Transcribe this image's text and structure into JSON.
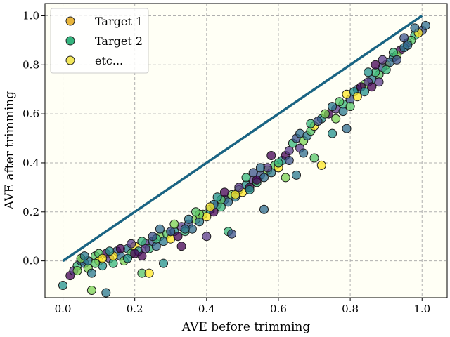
{
  "chart_data": {
    "type": "scatter",
    "xlabel": "AVE before trimming",
    "ylabel": "AVE after trimming",
    "xlim": [
      -0.05,
      1.07
    ],
    "ylim": [
      -0.15,
      1.05
    ],
    "xticks": [
      "0.0",
      "0.2",
      "0.4",
      "0.6",
      "0.8",
      "1.0"
    ],
    "yticks": [
      "0.0",
      "0.2",
      "0.4",
      "0.6",
      "0.8",
      "1.0"
    ],
    "grid": true,
    "plot_background": "#fffff5",
    "legend_position": "top-left",
    "reference_line": {
      "x": [
        0,
        1
      ],
      "y": [
        0,
        1
      ],
      "color": "#1a6483"
    },
    "legend": [
      {
        "label": "Target 1",
        "color": "#e8b53c"
      },
      {
        "label": "Target 2",
        "color": "#35b47e"
      },
      {
        "label": "etc...",
        "color": "#f1e65a"
      }
    ],
    "series_colors": [
      "#440154",
      "#3b528b",
      "#2a788e",
      "#21918c",
      "#35b779",
      "#7ad151",
      "#fde725",
      "#5c3c8c",
      "#2f6c8e",
      "#55c567"
    ],
    "points": [
      [
        0.0,
        -0.1
      ],
      [
        0.02,
        -0.06
      ],
      [
        0.03,
        -0.04
      ],
      [
        0.04,
        -0.02
      ],
      [
        0.05,
        0.0
      ],
      [
        0.06,
        -0.01
      ],
      [
        0.07,
        -0.03
      ],
      [
        0.08,
        -0.05
      ],
      [
        0.09,
        0.02
      ],
      [
        0.1,
        0.0
      ],
      [
        0.11,
        -0.02
      ],
      [
        0.12,
        0.03
      ],
      [
        0.13,
        0.01
      ],
      [
        0.14,
        -0.01
      ],
      [
        0.15,
        0.04
      ],
      [
        0.16,
        0.02
      ],
      [
        0.17,
        0.0
      ],
      [
        0.18,
        0.05
      ],
      [
        0.19,
        0.03
      ],
      [
        0.2,
        0.06
      ],
      [
        0.21,
        0.04
      ],
      [
        0.22,
        0.02
      ],
      [
        0.23,
        0.07
      ],
      [
        0.24,
        0.05
      ],
      [
        0.25,
        0.08
      ],
      [
        0.26,
        0.06
      ],
      [
        0.27,
        0.1
      ],
      [
        0.28,
        0.08
      ],
      [
        0.29,
        0.11
      ],
      [
        0.3,
        0.09
      ],
      [
        0.31,
        0.12
      ],
      [
        0.32,
        0.1
      ],
      [
        0.33,
        0.14
      ],
      [
        0.34,
        0.12
      ],
      [
        0.35,
        0.15
      ],
      [
        0.36,
        0.13
      ],
      [
        0.37,
        0.17
      ],
      [
        0.38,
        0.16
      ],
      [
        0.39,
        0.19
      ],
      [
        0.4,
        0.18
      ],
      [
        0.41,
        0.21
      ],
      [
        0.42,
        0.2
      ],
      [
        0.43,
        0.23
      ],
      [
        0.44,
        0.22
      ],
      [
        0.45,
        0.25
      ],
      [
        0.46,
        0.24
      ],
      [
        0.47,
        0.27
      ],
      [
        0.48,
        0.26
      ],
      [
        0.49,
        0.29
      ],
      [
        0.5,
        0.28
      ],
      [
        0.51,
        0.31
      ],
      [
        0.52,
        0.3
      ],
      [
        0.53,
        0.33
      ],
      [
        0.54,
        0.32
      ],
      [
        0.55,
        0.35
      ],
      [
        0.56,
        0.34
      ],
      [
        0.57,
        0.37
      ],
      [
        0.58,
        0.36
      ],
      [
        0.59,
        0.39
      ],
      [
        0.6,
        0.38
      ],
      [
        0.61,
        0.41
      ],
      [
        0.62,
        0.43
      ],
      [
        0.63,
        0.45
      ],
      [
        0.64,
        0.48
      ],
      [
        0.65,
        0.5
      ],
      [
        0.66,
        0.52
      ],
      [
        0.67,
        0.49
      ],
      [
        0.68,
        0.51
      ],
      [
        0.69,
        0.53
      ],
      [
        0.7,
        0.55
      ],
      [
        0.72,
        0.58
      ],
      [
        0.74,
        0.6
      ],
      [
        0.76,
        0.62
      ],
      [
        0.78,
        0.64
      ],
      [
        0.8,
        0.66
      ],
      [
        0.82,
        0.7
      ],
      [
        0.84,
        0.72
      ],
      [
        0.86,
        0.74
      ],
      [
        0.88,
        0.76
      ],
      [
        0.9,
        0.8
      ],
      [
        0.92,
        0.83
      ],
      [
        0.94,
        0.86
      ],
      [
        0.96,
        0.89
      ],
      [
        0.98,
        0.92
      ],
      [
        1.0,
        0.94
      ],
      [
        1.01,
        0.96
      ],
      [
        0.08,
        -0.12
      ],
      [
        0.12,
        -0.13
      ],
      [
        0.22,
        -0.05
      ],
      [
        0.24,
        -0.05
      ],
      [
        0.28,
        -0.01
      ],
      [
        0.33,
        0.06
      ],
      [
        0.4,
        0.1
      ],
      [
        0.46,
        0.12
      ],
      [
        0.47,
        0.11
      ],
      [
        0.56,
        0.21
      ],
      [
        0.62,
        0.34
      ],
      [
        0.65,
        0.35
      ],
      [
        0.7,
        0.42
      ],
      [
        0.72,
        0.39
      ],
      [
        0.75,
        0.52
      ],
      [
        0.58,
        0.43
      ],
      [
        0.66,
        0.46
      ],
      [
        0.69,
        0.56
      ],
      [
        0.71,
        0.57
      ],
      [
        0.79,
        0.54
      ],
      [
        0.05,
        0.01
      ],
      [
        0.07,
        0.0
      ],
      [
        0.1,
        0.03
      ],
      [
        0.14,
        0.02
      ],
      [
        0.18,
        0.01
      ],
      [
        0.2,
        0.03
      ],
      [
        0.23,
        0.05
      ],
      [
        0.26,
        0.09
      ],
      [
        0.3,
        0.12
      ],
      [
        0.34,
        0.13
      ],
      [
        0.38,
        0.19
      ],
      [
        0.42,
        0.23
      ],
      [
        0.44,
        0.25
      ],
      [
        0.48,
        0.27
      ],
      [
        0.52,
        0.29
      ],
      [
        0.54,
        0.33
      ],
      [
        0.57,
        0.38
      ],
      [
        0.6,
        0.4
      ],
      [
        0.63,
        0.41
      ],
      [
        0.67,
        0.44
      ],
      [
        0.73,
        0.6
      ],
      [
        0.75,
        0.63
      ],
      [
        0.77,
        0.65
      ],
      [
        0.79,
        0.68
      ],
      [
        0.81,
        0.69
      ],
      [
        0.83,
        0.71
      ],
      [
        0.85,
        0.73
      ],
      [
        0.87,
        0.77
      ],
      [
        0.89,
        0.79
      ],
      [
        0.91,
        0.81
      ],
      [
        0.93,
        0.84
      ],
      [
        0.95,
        0.87
      ],
      [
        0.97,
        0.9
      ],
      [
        0.99,
        0.93
      ],
      [
        0.85,
        0.77
      ],
      [
        0.87,
        0.8
      ],
      [
        0.89,
        0.82
      ],
      [
        0.92,
        0.85
      ],
      [
        0.95,
        0.91
      ],
      [
        0.98,
        0.95
      ],
      [
        0.04,
        -0.04
      ],
      [
        0.06,
        0.02
      ],
      [
        0.09,
        -0.01
      ],
      [
        0.11,
        0.01
      ],
      [
        0.13,
        0.04
      ],
      [
        0.16,
        0.05
      ],
      [
        0.19,
        0.07
      ],
      [
        0.22,
        0.08
      ],
      [
        0.25,
        0.1
      ],
      [
        0.27,
        0.13
      ],
      [
        0.31,
        0.15
      ],
      [
        0.35,
        0.17
      ],
      [
        0.37,
        0.2
      ],
      [
        0.41,
        0.22
      ],
      [
        0.43,
        0.26
      ],
      [
        0.45,
        0.28
      ],
      [
        0.49,
        0.3
      ],
      [
        0.51,
        0.34
      ],
      [
        0.53,
        0.36
      ],
      [
        0.55,
        0.38
      ],
      [
        0.76,
        0.58
      ],
      [
        0.78,
        0.61
      ],
      [
        0.8,
        0.63
      ],
      [
        0.82,
        0.67
      ],
      [
        0.84,
        0.69
      ],
      [
        0.86,
        0.71
      ],
      [
        0.88,
        0.73
      ],
      [
        0.9,
        0.78
      ],
      [
        0.93,
        0.82
      ],
      [
        0.96,
        0.88
      ]
    ]
  }
}
